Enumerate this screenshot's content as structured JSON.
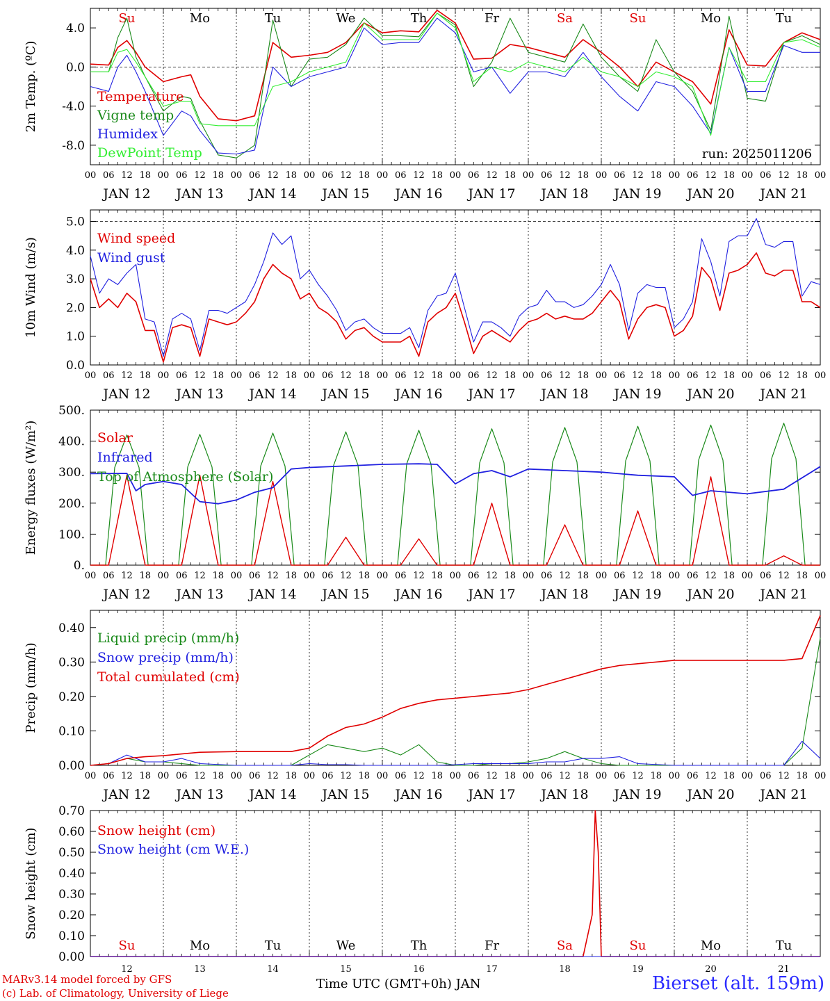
{
  "footer": {
    "credit_line1": "MARv3.14 model forced by GFS",
    "credit_line2": "(c) Lab. of Climatology, University of Liege",
    "x_title": "Time UTC (GMT+0h) JAN",
    "station": "Bierset (alt. 159m)"
  },
  "colors": {
    "red": "#e00000",
    "darkgreen": "#1a8a1a",
    "blue": "#2020e0",
    "lightgreen": "#33ee33"
  },
  "chart_data": [
    {
      "type": "line",
      "panel": "temperature",
      "ylabel": "2m Temp. (ºC)",
      "ylim": [
        -10,
        6.0
      ],
      "yticks": [
        4.0,
        0.0,
        -4.0,
        -8.0
      ],
      "ytick_labels": [
        "4.0",
        "0.0",
        "-4.0",
        "-8.0"
      ],
      "dashed_line": 0.0,
      "annotation": "run: 2025011206",
      "day_labels": [
        "Su",
        "Mo",
        "Tu",
        "We",
        "Th",
        "Fr",
        "Sa",
        "Su",
        "Mo",
        "Tu"
      ],
      "day_label_colors": [
        "red",
        "black",
        "black",
        "black",
        "black",
        "black",
        "red",
        "red",
        "black",
        "black"
      ],
      "date_labels": [
        "JAN 12",
        "JAN 13",
        "JAN 14",
        "JAN 15",
        "JAN 16",
        "JAN 17",
        "JAN 18",
        "JAN 19",
        "JAN 20",
        "JAN 21"
      ],
      "hour_ticks": [
        "00",
        "06",
        "12",
        "18"
      ],
      "x_hours": [
        0,
        6,
        9,
        12,
        15,
        18,
        24,
        30,
        33,
        36,
        42,
        48,
        54,
        60,
        66,
        72,
        78,
        84,
        90,
        96,
        102,
        108,
        114,
        120,
        126,
        132,
        138,
        144,
        150,
        156,
        162,
        168,
        174,
        180,
        186,
        192,
        198,
        204,
        210,
        216,
        222,
        228,
        234,
        240
      ],
      "series": [
        {
          "name": "Temperature",
          "color": "red",
          "values": [
            0.3,
            0.2,
            2.0,
            2.7,
            1.5,
            0.0,
            -1.5,
            -1.0,
            -0.8,
            -3.0,
            -5.3,
            -5.5,
            -5.0,
            2.5,
            1.0,
            1.2,
            1.5,
            2.5,
            4.5,
            3.5,
            3.7,
            3.6,
            5.8,
            4.5,
            0.8,
            0.9,
            2.3,
            2.0,
            1.5,
            1.0,
            2.8,
            1.5,
            0.0,
            -2.0,
            0.5,
            -0.5,
            -1.5,
            -3.8,
            3.8,
            0.2,
            0.1,
            2.5,
            3.5,
            2.8
          ]
        },
        {
          "name": "Vigne temp",
          "color": "darkgreen",
          "values": [
            -0.5,
            -0.5,
            3.0,
            5.0,
            1.0,
            -1.0,
            -4.5,
            -3.0,
            -3.2,
            -5.5,
            -9.0,
            -9.3,
            -8.0,
            4.8,
            -2.0,
            0.8,
            1.0,
            2.3,
            5.0,
            3.2,
            3.2,
            3.1,
            5.5,
            4.3,
            -2.0,
            0.5,
            5.0,
            1.5,
            1.0,
            0.5,
            4.4,
            1.0,
            -1.0,
            -2.5,
            2.8,
            -0.5,
            -2.5,
            -6.5,
            5.2,
            -3.2,
            -3.5,
            2.5,
            3.2,
            2.3
          ]
        },
        {
          "name": "Humidex",
          "color": "blue",
          "values": [
            -2.0,
            -2.5,
            0.0,
            1.2,
            -0.5,
            -2.5,
            -7.0,
            -4.5,
            -5.0,
            -6.5,
            -8.8,
            -8.9,
            -8.5,
            0.0,
            -2.0,
            -1.0,
            -0.5,
            0.0,
            4.0,
            2.3,
            2.5,
            2.5,
            5.0,
            3.5,
            -0.5,
            0.0,
            -2.7,
            -0.5,
            -0.5,
            -1.0,
            1.5,
            -1.0,
            -3.0,
            -4.5,
            -1.5,
            -2.0,
            -4.0,
            -6.8,
            2.0,
            -2.5,
            -2.5,
            2.2,
            1.5,
            1.5
          ]
        },
        {
          "name": "DewPoint Temp",
          "color": "lightgreen",
          "values": [
            -0.5,
            -0.5,
            1.5,
            1.8,
            0.5,
            -1.0,
            -4.0,
            -3.5,
            -3.5,
            -5.8,
            -6.0,
            -6.0,
            -6.0,
            -2.0,
            -1.5,
            -0.5,
            0.0,
            0.5,
            4.5,
            2.8,
            2.8,
            2.8,
            5.5,
            4.0,
            -1.5,
            0.0,
            -0.5,
            0.5,
            0.0,
            -0.5,
            1.0,
            -0.5,
            -1.0,
            -2.0,
            -0.5,
            -1.0,
            -2.0,
            -7.0,
            2.0,
            -1.5,
            -1.5,
            2.5,
            2.8,
            2.0
          ]
        }
      ]
    },
    {
      "type": "line",
      "panel": "wind",
      "ylabel": "10m Wind (m/s)",
      "ylim": [
        0,
        5.4
      ],
      "yticks": [
        5.0,
        4.0,
        3.0,
        2.0,
        1.0,
        0.0
      ],
      "ytick_labels": [
        "5.0",
        "4.0",
        "3.0",
        "2.0",
        "1.0",
        "0.0"
      ],
      "dashed_line": 5.0,
      "date_labels": [
        "JAN 12",
        "JAN 13",
        "JAN 14",
        "JAN 15",
        "JAN 16",
        "JAN 17",
        "JAN 18",
        "JAN 19",
        "JAN 20",
        "JAN 21"
      ],
      "hour_ticks": [
        "00",
        "06",
        "12",
        "18"
      ],
      "x_hours": [
        0,
        3,
        6,
        9,
        12,
        15,
        18,
        21,
        24,
        27,
        30,
        33,
        36,
        39,
        42,
        45,
        48,
        51,
        54,
        57,
        60,
        63,
        66,
        69,
        72,
        75,
        78,
        81,
        84,
        87,
        90,
        93,
        96,
        99,
        102,
        105,
        108,
        111,
        114,
        117,
        120,
        123,
        126,
        129,
        132,
        135,
        138,
        141,
        144,
        147,
        150,
        153,
        156,
        159,
        162,
        165,
        168,
        171,
        174,
        177,
        180,
        183,
        186,
        189,
        192,
        195,
        198,
        201,
        204,
        207,
        210,
        213,
        216,
        219,
        222,
        225,
        228,
        231,
        234,
        237,
        240
      ],
      "series": [
        {
          "name": "Wind speed",
          "color": "red",
          "values": [
            3.0,
            2.0,
            2.3,
            2.0,
            2.5,
            2.2,
            1.2,
            1.2,
            0.1,
            1.3,
            1.4,
            1.3,
            0.3,
            1.6,
            1.5,
            1.4,
            1.5,
            1.8,
            2.2,
            3.0,
            3.5,
            3.2,
            3.0,
            2.3,
            2.5,
            2.0,
            1.8,
            1.5,
            0.9,
            1.2,
            1.3,
            1.0,
            0.8,
            0.8,
            0.8,
            1.0,
            0.3,
            1.5,
            1.8,
            2.0,
            2.5,
            1.5,
            0.4,
            1.0,
            1.2,
            1.0,
            0.8,
            1.2,
            1.5,
            1.6,
            1.8,
            1.6,
            1.7,
            1.6,
            1.6,
            1.8,
            2.2,
            2.6,
            2.2,
            0.9,
            1.6,
            2.0,
            2.1,
            2.0,
            1.0,
            1.2,
            1.7,
            3.4,
            3.0,
            1.9,
            3.2,
            3.3,
            3.5,
            3.9,
            3.2,
            3.1,
            3.3,
            3.3,
            2.2,
            2.2,
            2.0
          ]
        },
        {
          "name": "Wind gust",
          "color": "blue",
          "values": [
            3.8,
            2.5,
            3.0,
            2.8,
            3.2,
            3.5,
            1.6,
            1.5,
            0.3,
            1.6,
            1.8,
            1.6,
            0.5,
            1.9,
            1.9,
            1.8,
            2.0,
            2.2,
            2.8,
            3.6,
            4.6,
            4.2,
            4.5,
            3.0,
            3.3,
            2.8,
            2.4,
            1.9,
            1.2,
            1.5,
            1.6,
            1.3,
            1.1,
            1.1,
            1.1,
            1.3,
            0.6,
            1.9,
            2.4,
            2.5,
            3.2,
            2.0,
            0.8,
            1.5,
            1.5,
            1.3,
            1.0,
            1.7,
            2.0,
            2.1,
            2.6,
            2.2,
            2.2,
            2.0,
            2.1,
            2.4,
            2.8,
            3.5,
            2.8,
            1.2,
            2.5,
            2.8,
            2.7,
            2.7,
            1.3,
            1.6,
            2.2,
            4.4,
            3.6,
            2.4,
            4.3,
            4.5,
            4.5,
            5.1,
            4.2,
            4.1,
            4.3,
            4.3,
            2.4,
            2.9,
            2.8
          ]
        }
      ]
    },
    {
      "type": "line",
      "panel": "energy",
      "ylabel": "Energy fluxes (W/m²)",
      "ylim": [
        0,
        500
      ],
      "yticks": [
        500,
        400,
        300,
        200,
        100,
        0
      ],
      "ytick_labels": [
        "500.",
        "400.",
        "300.",
        "200.",
        "100.",
        "0."
      ],
      "date_labels": [
        "JAN 12",
        "JAN 13",
        "JAN 14",
        "JAN 15",
        "JAN 16",
        "JAN 17",
        "JAN 18",
        "JAN 19",
        "JAN 20",
        "JAN 21"
      ],
      "hour_ticks": [
        "00",
        "06",
        "12",
        "18"
      ],
      "solar_peaks": [
        290,
        290,
        270,
        90,
        85,
        200,
        130,
        175,
        285,
        30
      ],
      "toa_peaks": [
        420,
        422,
        426,
        430,
        435,
        440,
        444,
        448,
        452,
        458
      ],
      "infrared_x": [
        0,
        12,
        15,
        18,
        24,
        30,
        36,
        42,
        48,
        54,
        60,
        66,
        72,
        84,
        96,
        108,
        114,
        120,
        126,
        132,
        138,
        144,
        156,
        168,
        180,
        192,
        198,
        204,
        216,
        228,
        240
      ],
      "infrared_values": [
        295,
        296,
        240,
        260,
        270,
        260,
        205,
        198,
        210,
        235,
        250,
        310,
        315,
        320,
        325,
        327,
        325,
        262,
        295,
        305,
        285,
        310,
        305,
        300,
        290,
        285,
        225,
        240,
        230,
        245,
        318
      ],
      "series": [
        {
          "name": "Solar",
          "color": "red"
        },
        {
          "name": "Infrared",
          "color": "blue"
        },
        {
          "name": "Top of Atmosphere (Solar)",
          "color": "darkgreen"
        }
      ]
    },
    {
      "type": "line",
      "panel": "precip",
      "ylabel": "Precip (mm/h)",
      "ylim": [
        0,
        0.45
      ],
      "yticks": [
        0.4,
        0.3,
        0.2,
        0.1,
        0.0
      ],
      "ytick_labels": [
        "0.40",
        "0.30",
        "0.20",
        "0.10",
        "0.00"
      ],
      "date_labels": [
        "JAN 12",
        "JAN 13",
        "JAN 14",
        "JAN 15",
        "JAN 16",
        "JAN 17",
        "JAN 18",
        "JAN 19",
        "JAN 20",
        "JAN 21"
      ],
      "hour_ticks": [
        "00",
        "06",
        "12",
        "18"
      ],
      "x_hours": [
        0,
        6,
        12,
        18,
        24,
        30,
        36,
        48,
        60,
        66,
        72,
        78,
        84,
        90,
        96,
        102,
        108,
        114,
        120,
        126,
        132,
        138,
        144,
        150,
        156,
        162,
        168,
        174,
        180,
        192,
        204,
        216,
        228,
        234,
        240
      ],
      "series": [
        {
          "name": "Liquid precip (mm/h)",
          "color": "darkgreen",
          "values": [
            0,
            0.005,
            0.02,
            0.01,
            0.01,
            0.005,
            0,
            0,
            0,
            0,
            0.03,
            0.06,
            0.05,
            0.04,
            0.05,
            0.03,
            0.06,
            0.01,
            0,
            0,
            0.005,
            0.005,
            0.01,
            0.02,
            0.04,
            0.02,
            0.005,
            0,
            0,
            0,
            0,
            0,
            0,
            0.05,
            0.37
          ]
        },
        {
          "name": "Snow precip (mm/h)",
          "color": "blue",
          "values": [
            0,
            0.005,
            0.03,
            0.01,
            0.01,
            0.02,
            0.005,
            0,
            0,
            0,
            0.005,
            0.002,
            0.002,
            0,
            0,
            0,
            0,
            0,
            0.002,
            0.005,
            0.005,
            0.005,
            0.005,
            0.01,
            0.01,
            0.02,
            0.02,
            0.025,
            0.005,
            0,
            0,
            0,
            0,
            0.07,
            0.02
          ]
        },
        {
          "name": "Total cumulated (cm)",
          "color": "red",
          "values": [
            0,
            0.005,
            0.02,
            0.025,
            0.028,
            0.033,
            0.038,
            0.04,
            0.04,
            0.04,
            0.05,
            0.085,
            0.11,
            0.12,
            0.14,
            0.165,
            0.18,
            0.19,
            0.195,
            0.2,
            0.205,
            0.21,
            0.22,
            0.235,
            0.25,
            0.265,
            0.28,
            0.29,
            0.295,
            0.305,
            0.305,
            0.305,
            0.305,
            0.31,
            0.435
          ]
        }
      ]
    },
    {
      "type": "line",
      "panel": "snow",
      "ylabel": "Snow height (cm)",
      "ylim": [
        0,
        0.7
      ],
      "yticks": [
        0.7,
        0.6,
        0.5,
        0.4,
        0.3,
        0.2,
        0.1,
        0.0
      ],
      "ytick_labels": [
        "0.70",
        "0.60",
        "0.50",
        "0.40",
        "0.30",
        "0.20",
        "0.10",
        "0.00"
      ],
      "day_labels": [
        "Su",
        "Mo",
        "Tu",
        "We",
        "Th",
        "Fr",
        "Sa",
        "Su",
        "Mo",
        "Tu"
      ],
      "day_label_colors": [
        "red",
        "black",
        "black",
        "black",
        "black",
        "black",
        "red",
        "red",
        "black",
        "black"
      ],
      "day_numbers": [
        "12",
        "13",
        "14",
        "15",
        "16",
        "17",
        "18",
        "19",
        "20",
        "21"
      ],
      "x_hours": [
        0,
        162,
        165,
        166,
        167,
        168,
        240
      ],
      "series": [
        {
          "name": "Snow height (cm)",
          "color": "red",
          "values": [
            0,
            0,
            0.2,
            0.7,
            0.5,
            0,
            0
          ]
        },
        {
          "name": "Snow height (cm W.E.)",
          "color": "blue",
          "values": [
            0,
            0,
            0,
            0,
            0,
            0,
            0
          ]
        }
      ]
    }
  ]
}
